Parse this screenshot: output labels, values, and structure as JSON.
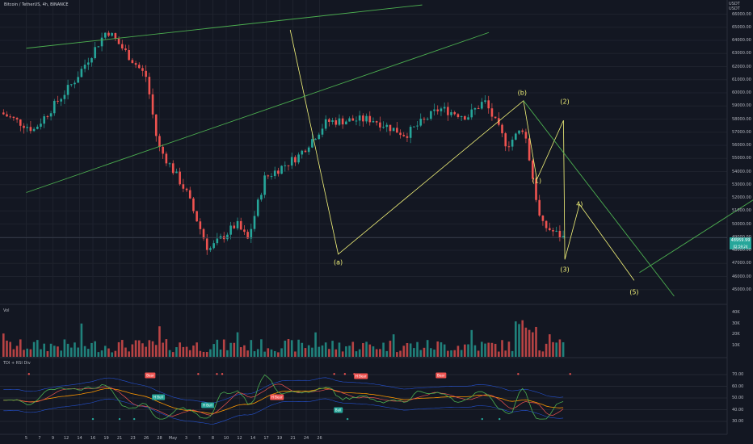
{
  "header": {
    "title": "Bitcoin / TetherUS, 4h, BINANCE",
    "currency": [
      "USDT",
      "USDT"
    ]
  },
  "volume_panel": {
    "label": "Vol"
  },
  "tdi_panel": {
    "label": "TDI + RSI Div"
  },
  "last_price": {
    "value": "48959.99",
    "countdown": "02:59:24"
  },
  "colors": {
    "bull": "#26a69a",
    "bear": "#ef5350",
    "wave_line": "#f5f57a",
    "trend_line": "#4caf50",
    "background": "#131722"
  },
  "chart_data": {
    "type": "candlestick",
    "ylim": [
      44500,
      66500
    ],
    "y_ticks": [
      "66000.00",
      "65000.00",
      "64000.00",
      "63000.00",
      "62000.00",
      "61000.00",
      "60000.00",
      "59000.00",
      "58000.00",
      "57000.00",
      "56000.00",
      "55000.00",
      "54000.00",
      "53000.00",
      "52000.00",
      "51000.00",
      "50000.00",
      "49000.00",
      "48000.00",
      "47000.00",
      "46000.00",
      "45000.00"
    ],
    "x_ticks": [
      "5",
      "7",
      "9",
      "12",
      "14",
      "16",
      "19",
      "21",
      "23",
      "26",
      "28",
      "May",
      "3",
      "5",
      "8",
      "10",
      "12",
      "14",
      "17",
      "19",
      "21",
      "24",
      "26"
    ],
    "price_path": [
      [
        0,
        58500
      ],
      [
        0.06,
        57200
      ],
      [
        0.13,
        60800
      ],
      [
        0.19,
        64800
      ],
      [
        0.26,
        61200
      ],
      [
        0.28,
        56000
      ],
      [
        0.33,
        52500
      ],
      [
        0.37,
        48000
      ],
      [
        0.42,
        50000
      ],
      [
        0.44,
        48800
      ],
      [
        0.47,
        53500
      ],
      [
        0.53,
        55200
      ],
      [
        0.58,
        57800
      ],
      [
        0.66,
        58000
      ],
      [
        0.72,
        56800
      ],
      [
        0.78,
        58800
      ],
      [
        0.83,
        58200
      ],
      [
        0.86,
        59400
      ],
      [
        0.9,
        56000
      ],
      [
        0.93,
        57400
      ],
      [
        0.96,
        50000
      ],
      [
        1,
        48960
      ]
    ],
    "wave_labels": [
      {
        "label": "(a)",
        "date_index": 23.4,
        "price": 47100
      },
      {
        "label": "(b)",
        "date_index": 37.2,
        "price": 60000
      },
      {
        "label": "(1)",
        "date_index": 38.3,
        "price": 53300
      },
      {
        "label": "(2)",
        "date_index": 40.4,
        "price": 59300
      },
      {
        "label": "(3)",
        "date_index": 40.4,
        "price": 46500
      },
      {
        "label": "4)",
        "date_index": 41.5,
        "price": 51500
      },
      {
        "label": "(5)",
        "date_index": 45.6,
        "price": 44800
      }
    ],
    "wave_path": [
      [
        19.8,
        64800
      ],
      [
        23.4,
        47700
      ],
      [
        37.3,
        59400
      ],
      [
        38.3,
        53400
      ],
      [
        40.3,
        57900
      ],
      [
        40.4,
        47300
      ],
      [
        41.5,
        51500
      ],
      [
        45.6,
        45700
      ]
    ],
    "trend_lines": [
      {
        "from": [
          0,
          63400
        ],
        "to": [
          29.7,
          66700
        ]
      },
      {
        "from": [
          0,
          52400
        ],
        "to": [
          34.7,
          64600
        ]
      },
      {
        "from": [
          37.3,
          59400
        ],
        "to": [
          48.6,
          44500
        ]
      },
      {
        "from": [
          46,
          46300
        ],
        "to": [
          55.4,
          52400
        ]
      }
    ],
    "volume_ticks": [
      "40K",
      "30K",
      "20K",
      "10K"
    ],
    "tdi_ticks": [
      "70.00",
      "60.00",
      "50.00",
      "40.00",
      "30.00"
    ],
    "signals": [
      {
        "label": "Bear",
        "type": "bear",
        "date_index": 9.3,
        "value": 69
      },
      {
        "label": "H Bull",
        "type": "bull",
        "date_index": 9.9,
        "value": 51
      },
      {
        "label": "H Bull",
        "type": "bull",
        "date_index": 13.6,
        "value": 43.5
      },
      {
        "label": "H Bear",
        "type": "bear",
        "date_index": 18.8,
        "value": 50.5
      },
      {
        "label": "Bull",
        "type": "bull",
        "date_index": 23.4,
        "value": 40
      },
      {
        "label": "H Bear",
        "type": "bear",
        "date_index": 25.1,
        "value": 68.5
      },
      {
        "label": "Bear",
        "type": "bear",
        "date_index": 31.1,
        "value": 69.5
      }
    ]
  }
}
